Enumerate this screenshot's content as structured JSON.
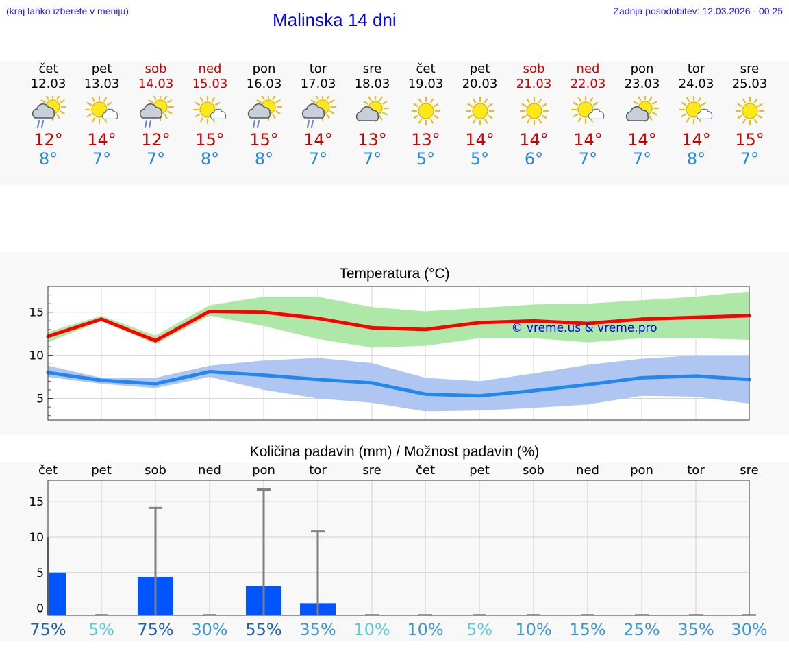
{
  "header": {
    "hint": "(kraj lahko izberete v meniju)",
    "title": "Malinska 14 dni",
    "updated": "Zadnja posodobitev: 12.03.2026 - 00:25"
  },
  "days": [
    {
      "name": "čet",
      "date": "12.03",
      "weekend": false,
      "icon": "sun-cloud-rain-icon",
      "tmax": "12°",
      "tmin": "8°"
    },
    {
      "name": "pet",
      "date": "13.03",
      "weekend": false,
      "icon": "sun-small-cloud-icon",
      "tmax": "14°",
      "tmin": "7°"
    },
    {
      "name": "sob",
      "date": "14.03",
      "weekend": true,
      "icon": "sun-cloud-rain-icon",
      "tmax": "12°",
      "tmin": "7°"
    },
    {
      "name": "ned",
      "date": "15.03",
      "weekend": true,
      "icon": "sun-small-cloud-icon",
      "tmax": "15°",
      "tmin": "8°"
    },
    {
      "name": "pon",
      "date": "16.03",
      "weekend": false,
      "icon": "sun-cloud-rain-icon",
      "tmax": "15°",
      "tmin": "8°"
    },
    {
      "name": "tor",
      "date": "17.03",
      "weekend": false,
      "icon": "sun-cloud-rain-icon",
      "tmax": "14°",
      "tmin": "7°"
    },
    {
      "name": "sre",
      "date": "18.03",
      "weekend": false,
      "icon": "sun-cloud-icon",
      "tmax": "13°",
      "tmin": "7°"
    },
    {
      "name": "čet",
      "date": "19.03",
      "weekend": false,
      "icon": "sun-icon",
      "tmax": "13°",
      "tmin": "5°"
    },
    {
      "name": "pet",
      "date": "20.03",
      "weekend": false,
      "icon": "sun-icon",
      "tmax": "14°",
      "tmin": "5°"
    },
    {
      "name": "sob",
      "date": "21.03",
      "weekend": true,
      "icon": "sun-icon",
      "tmax": "14°",
      "tmin": "6°"
    },
    {
      "name": "ned",
      "date": "22.03",
      "weekend": true,
      "icon": "sun-small-cloud-icon",
      "tmax": "14°",
      "tmin": "7°"
    },
    {
      "name": "pon",
      "date": "23.03",
      "weekend": false,
      "icon": "sun-cloud-icon",
      "tmax": "14°",
      "tmin": "7°"
    },
    {
      "name": "tor",
      "date": "24.03",
      "weekend": false,
      "icon": "sun-small-cloud-icon",
      "tmax": "14°",
      "tmin": "8°"
    },
    {
      "name": "sre",
      "date": "25.03",
      "weekend": false,
      "icon": "sun-icon",
      "tmax": "15°",
      "tmin": "7°"
    }
  ],
  "colors": {
    "max_line": "#ff0000",
    "max_band": "#aee8a8",
    "min_line": "#2288ee",
    "min_band": "#b0c6f2",
    "precip_bar": "#0055ff",
    "error_bar": "#808080",
    "weekend": "#cc0000",
    "watermark": "#0000ee"
  },
  "chart_data": [
    {
      "type": "line",
      "title": "Temperatura (°C)",
      "watermark": "© vreme.us & vreme.pro",
      "x": [
        0,
        1,
        2,
        3,
        4,
        5,
        6,
        7,
        8,
        9,
        10,
        11,
        12,
        13
      ],
      "ylim": [
        2.5,
        18
      ],
      "yticks": [
        5,
        10,
        15
      ],
      "ytick_labels": [
        "5",
        "10",
        "15"
      ],
      "series": [
        {
          "name": "max",
          "values": [
            12.2,
            14.2,
            11.7,
            15.1,
            15.0,
            14.3,
            13.2,
            13.0,
            13.8,
            14.0,
            13.7,
            14.2,
            14.4,
            14.6
          ],
          "low": [
            11.5,
            14.0,
            11.3,
            14.6,
            13.4,
            11.9,
            10.9,
            11.1,
            12.0,
            12.0,
            11.5,
            12.0,
            12.0,
            11.8
          ],
          "high": [
            12.7,
            14.6,
            12.3,
            15.8,
            16.8,
            16.8,
            15.6,
            15.1,
            15.5,
            15.9,
            16.0,
            16.4,
            16.8,
            17.4
          ]
        },
        {
          "name": "min",
          "values": [
            8.0,
            7.1,
            6.7,
            8.1,
            7.7,
            7.2,
            6.8,
            5.5,
            5.3,
            5.9,
            6.6,
            7.4,
            7.6,
            7.2
          ],
          "low": [
            7.5,
            6.7,
            6.2,
            7.5,
            6.0,
            5.0,
            4.5,
            3.5,
            3.6,
            3.9,
            4.3,
            5.3,
            5.2,
            4.4
          ],
          "high": [
            8.8,
            7.4,
            7.4,
            8.8,
            9.4,
            9.7,
            9.1,
            7.4,
            7.0,
            7.9,
            8.9,
            9.6,
            10.0,
            10.0
          ]
        }
      ]
    },
    {
      "type": "bar",
      "title": "Količina padavin (mm) / Možnost padavin (%)",
      "categories": [
        "čet",
        "pet",
        "sob",
        "ned",
        "pon",
        "tor",
        "sre",
        "čet",
        "pet",
        "sob",
        "ned",
        "pon",
        "tor",
        "sre"
      ],
      "values": [
        5.0,
        0,
        4.4,
        0,
        3.1,
        0.7,
        0,
        0,
        0,
        0,
        0,
        0,
        0,
        0
      ],
      "error_high": [
        10.0,
        0,
        14.1,
        0,
        16.7,
        10.8,
        0,
        0,
        0,
        0,
        0,
        0,
        0,
        0
      ],
      "ylim": [
        -1,
        18
      ],
      "yticks": [
        0,
        5,
        10,
        15
      ],
      "ytick_labels": [
        "0",
        "5",
        "10",
        "15"
      ],
      "probability": [
        "75%",
        "5%",
        "75%",
        "30%",
        "55%",
        "35%",
        "10%",
        "10%",
        "5%",
        "10%",
        "15%",
        "25%",
        "35%",
        "30%"
      ],
      "probability_colors": [
        "#1a5fa8",
        "#55cce0",
        "#1a5fa8",
        "#3a96d2",
        "#1a5fa8",
        "#3a96d2",
        "#55cce0",
        "#3a96d2",
        "#55cce0",
        "#3a96d2",
        "#3a96d2",
        "#3a96d2",
        "#3a96d2",
        "#3a96d2"
      ]
    }
  ]
}
